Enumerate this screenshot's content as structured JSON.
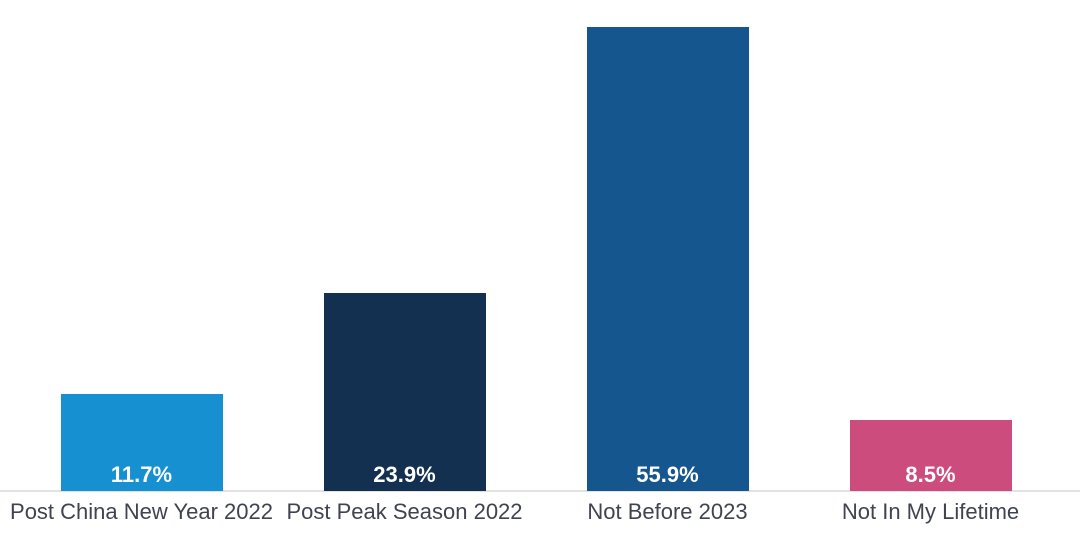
{
  "chart_data": {
    "type": "bar",
    "title": "",
    "xlabel": "",
    "ylabel": "",
    "categories": [
      "Post China New Year 2022",
      "Post Peak Season 2022",
      "Not Before 2023",
      "Not In My Lifetime"
    ],
    "values": [
      11.7,
      23.9,
      55.9,
      8.5
    ],
    "value_labels": [
      "11.7%",
      "23.9%",
      "55.9%",
      "8.5%"
    ],
    "bar_colors": [
      "#1790d2",
      "#143050",
      "#16568e",
      "#cd4c7e"
    ],
    "ylim": [
      0,
      60
    ],
    "grid": "off",
    "legend": "none",
    "value_label_position": "inside-bottom",
    "value_label_color": "#ffffff",
    "category_label_color": "#3f4450",
    "baseline_color": "#e2e2e2",
    "background_color": "#ffffff"
  }
}
